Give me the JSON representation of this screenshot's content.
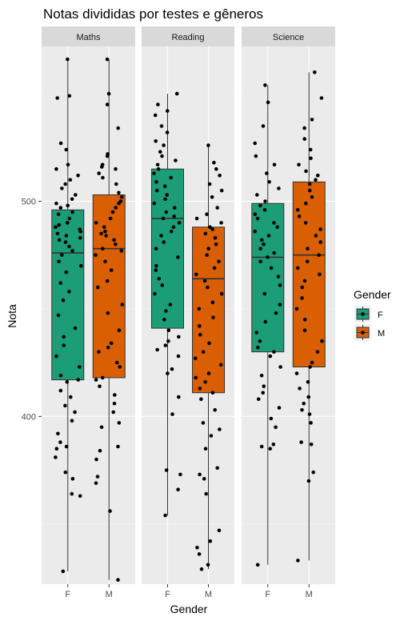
{
  "chart_data": {
    "type": "boxplot",
    "title": "Notas divididas por testes e gêneros",
    "xlabel": "Gender",
    "ylabel": "Nota",
    "ylim": [
      322,
      572
    ],
    "yticks": [
      400,
      500
    ],
    "grid": true,
    "legend": {
      "title": "Gender",
      "position": "right",
      "entries": [
        "F",
        "M"
      ]
    },
    "colors": {
      "F": "#1b9e77",
      "M": "#d95f02",
      "panel_bg": "#ebebeb",
      "strip_bg": "#d9d9d9",
      "grid_major": "#ffffff"
    },
    "categories": [
      "F",
      "M"
    ],
    "facets": [
      {
        "name": "Maths",
        "boxes": [
          {
            "gender": "F",
            "min": 328,
            "q1": 417,
            "median": 476,
            "q3": 496,
            "max": 566,
            "points": [
              566,
              549,
              548,
              527,
              524,
              517,
              515,
              512,
              510,
              508,
              506,
              503,
              501,
              499,
              498,
              497,
              495,
              494,
              492,
              490,
              489,
              488,
              487,
              486,
              485,
              484,
              483,
              482,
              481,
              479,
              477,
              475,
              472,
              470,
              467,
              462,
              458,
              454,
              447,
              441,
              437,
              433,
              428,
              423,
              419,
              417,
              416,
              412,
              409,
              405,
              402,
              398,
              392,
              388,
              386,
              385,
              381,
              374,
              371,
              364,
              363,
              328
            ]
          },
          {
            "gender": "M",
            "min": 324,
            "q1": 418,
            "median": 478,
            "q3": 503,
            "max": 566,
            "points": [
              566,
              550,
              545,
              534,
              522,
              521,
              517,
              516,
              515,
              513,
              511,
              508,
              504,
              502,
              500,
              499,
              497,
              495,
              492,
              490,
              488,
              486,
              485,
              484,
              482,
              480,
              478,
              477,
              475,
              472,
              468,
              463,
              460,
              452,
              448,
              440,
              434,
              432,
              430,
              425,
              423,
              418,
              417,
              414,
              410,
              406,
              402,
              397,
              395,
              386,
              384,
              380,
              372,
              369,
              356,
              324
            ]
          }
        ]
      },
      {
        "name": "Reading",
        "boxes": [
          {
            "gender": "F",
            "min": 354,
            "q1": 441,
            "median": 492,
            "q3": 515,
            "max": 550,
            "points": [
              550,
              545,
              542,
              540,
              535,
              532,
              528,
              526,
              523,
              521,
              519,
              517,
              515,
              513,
              511,
              509,
              507,
              505,
              503,
              501,
              499,
              497,
              495,
              493,
              492,
              490,
              488,
              486,
              484,
              481,
              478,
              474,
              470,
              468,
              464,
              461,
              457,
              452,
              449,
              445,
              440,
              437,
              435,
              433,
              431,
              428,
              422,
              420,
              409,
              401,
              375,
              373,
              366,
              354
            ]
          },
          {
            "gender": "M",
            "min": 329,
            "q1": 411,
            "median": 464,
            "q3": 488,
            "max": 526,
            "points": [
              526,
              518,
              515,
              512,
              508,
              505,
              502,
              497,
              494,
              492,
              490,
              488,
              487,
              485,
              483,
              480,
              478,
              475,
              472,
              469,
              466,
              463,
              460,
              457,
              453,
              450,
              446,
              442,
              438,
              434,
              430,
              427,
              424,
              420,
              418,
              416,
              413,
              411,
              408,
              403,
              397,
              394,
              391,
              385,
              376,
              373,
              371,
              364,
              347,
              342,
              339,
              336,
              331,
              329
            ]
          }
        ]
      },
      {
        "name": "Science",
        "boxes": [
          {
            "gender": "F",
            "min": 331,
            "q1": 430,
            "median": 474,
            "q3": 499,
            "max": 554,
            "points": [
              554,
              546,
              535,
              527,
              521,
              517,
              513,
              509,
              506,
              503,
              500,
              498,
              496,
              494,
              492,
              490,
              488,
              486,
              484,
              482,
              480,
              478,
              476,
              474,
              472,
              469,
              465,
              461,
              457,
              452,
              448,
              444,
              439,
              435,
              432,
              430,
              428,
              423,
              419,
              414,
              411,
              408,
              404,
              399,
              395,
              387,
              386,
              385,
              331
            ]
          },
          {
            "gender": "M",
            "min": 333,
            "q1": 423,
            "median": 475,
            "q3": 509,
            "max": 560,
            "points": [
              560,
              548,
              538,
              534,
              529,
              524,
              520,
              517,
              514,
              512,
              510,
              508,
              505,
              502,
              499,
              496,
              493,
              490,
              487,
              484,
              481,
              478,
              475,
              472,
              469,
              466,
              463,
              460,
              455,
              450,
              445,
              440,
              435,
              430,
              425,
              423,
              420,
              416,
              413,
              409,
              406,
              403,
              401,
              397,
              388,
              387,
              374,
              370,
              333
            ]
          }
        ]
      }
    ]
  }
}
